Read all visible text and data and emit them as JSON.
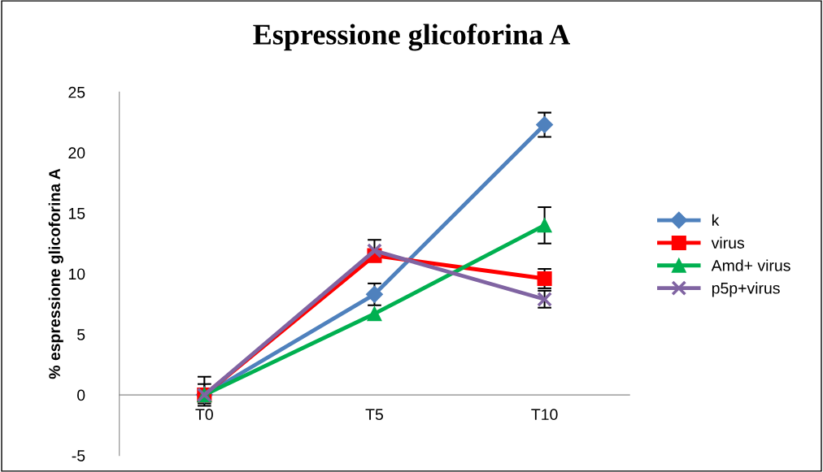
{
  "chart_data": {
    "type": "line",
    "title": "Espressione glicoforina A",
    "ylabel": "% espressione glicoforina A",
    "categories": [
      "T0",
      "T5",
      "T10"
    ],
    "series": [
      {
        "name": "k",
        "color": "#4f81bd",
        "marker": "diamond",
        "values": [
          0,
          8.3,
          22.3
        ],
        "errors": [
          [
            -0.7,
            1.5
          ],
          0.9,
          1.0
        ]
      },
      {
        "name": "virus",
        "color": "#ff0000",
        "marker": "square",
        "values": [
          0,
          11.5,
          9.6
        ],
        "errors": [
          null,
          null,
          0.8
        ]
      },
      {
        "name": "Amd+ virus",
        "color": "#00b050",
        "marker": "triangle",
        "values": [
          0,
          6.7,
          14.0
        ],
        "errors": [
          null,
          null,
          1.5
        ]
      },
      {
        "name": "p5p+virus",
        "color": "#8064a2",
        "marker": "cross",
        "values": [
          0,
          11.9,
          7.9
        ],
        "errors": [
          0.9,
          0.9,
          0.7
        ]
      }
    ],
    "ylim": [
      -5,
      25
    ],
    "yticks": [
      -5,
      0,
      5,
      10,
      15,
      20,
      25
    ],
    "grid": false,
    "legend": "right",
    "line_style": "solid"
  }
}
